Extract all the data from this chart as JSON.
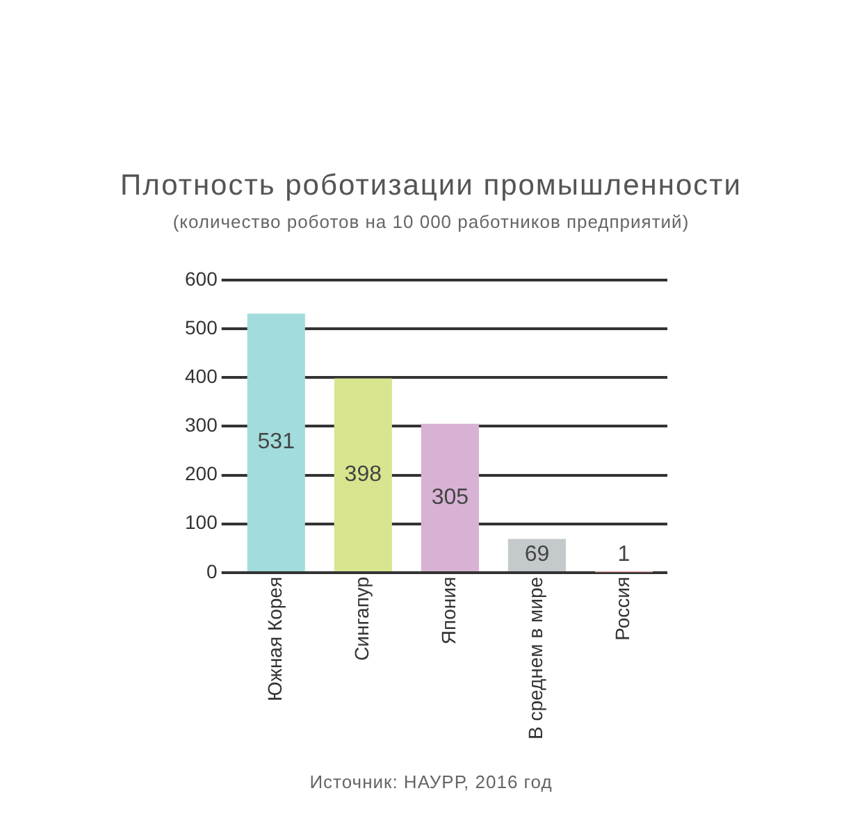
{
  "chart_data": {
    "type": "bar",
    "title": "Плотность роботизации промышленности",
    "subtitle": "(количество роботов на 10 000 работников предприятий)",
    "categories": [
      "Южная Корея",
      "Сингапур",
      "Япония",
      "В среднем в мире",
      "Россия"
    ],
    "values": [
      531,
      398,
      305,
      69,
      1
    ],
    "colors": [
      "#a3dcdc",
      "#d9e58e",
      "#d8b2d4",
      "#c4c9cb",
      "#f0a8b0"
    ],
    "ylim": [
      0,
      600
    ],
    "yticks": [
      0,
      100,
      200,
      300,
      400,
      500,
      600
    ],
    "grid": "y",
    "legend": false,
    "data_labels": true,
    "annotations": [
      "Источник: НАУРР, 2016 год"
    ]
  }
}
